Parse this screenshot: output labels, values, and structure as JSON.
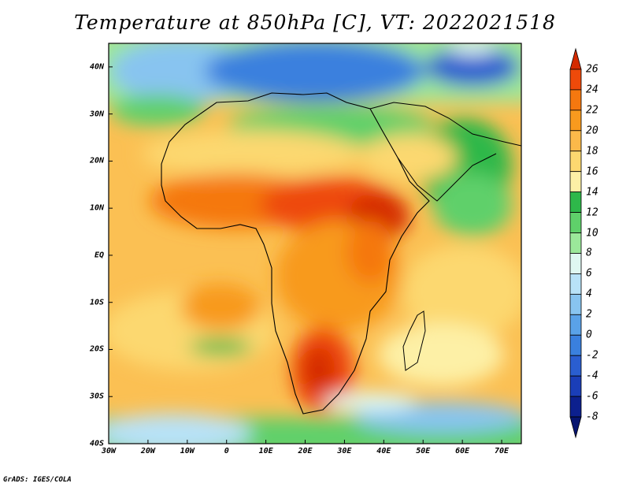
{
  "title": "Temperature at 850hPa [C], VT: 2022021518",
  "credit": "GrADS: IGES/COLA",
  "map": {
    "region": "Africa",
    "lon_range": [
      -30,
      75
    ],
    "lat_range": [
      -40,
      45
    ],
    "lat_labels": [
      "40N",
      "30N",
      "20N",
      "10N",
      "EQ",
      "10S",
      "20S",
      "30S",
      "40S"
    ],
    "lon_labels": [
      "30W",
      "20W",
      "10W",
      "0",
      "10E",
      "20E",
      "30E",
      "40E",
      "50E",
      "60E",
      "70E"
    ]
  },
  "colorbar": {
    "labels": [
      "26",
      "24",
      "22",
      "20",
      "18",
      "16",
      "14",
      "12",
      "10",
      "8",
      "6",
      "4",
      "2",
      "0",
      "-2",
      "-4",
      "-6",
      "-8"
    ],
    "colors": [
      "#d42a00",
      "#ee4a0a",
      "#f5780f",
      "#f89a1e",
      "#fbb94a",
      "#fcd870",
      "#fdf0a6",
      "#2eb84a",
      "#5fd06a",
      "#9be89a",
      "#dff8f2",
      "#b8e2f8",
      "#88c4f0",
      "#5aa2e8",
      "#3a80de",
      "#2a5ed0",
      "#1a3eb8",
      "#0c208e",
      "#061470"
    ]
  }
}
